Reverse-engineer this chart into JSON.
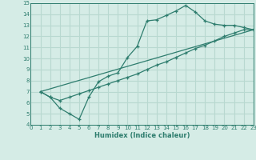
{
  "xlabel": "Humidex (Indice chaleur)",
  "xlim": [
    0,
    23
  ],
  "ylim": [
    4,
    15
  ],
  "xticks": [
    0,
    1,
    2,
    3,
    4,
    5,
    6,
    7,
    8,
    9,
    10,
    11,
    12,
    13,
    14,
    15,
    16,
    17,
    18,
    19,
    20,
    21,
    22,
    23
  ],
  "yticks": [
    4,
    5,
    6,
    7,
    8,
    9,
    10,
    11,
    12,
    13,
    14,
    15
  ],
  "color": "#2e7d6e",
  "bg_color": "#d5ece6",
  "grid_color": "#b8d8d0",
  "line1_x": [
    1,
    2,
    3,
    4,
    5,
    6,
    7,
    8,
    9,
    10,
    11,
    12,
    13,
    14,
    15,
    16,
    17,
    18,
    19,
    20,
    21,
    22,
    23
  ],
  "line1_y": [
    7.0,
    6.5,
    5.5,
    5.0,
    4.5,
    6.5,
    7.9,
    8.4,
    8.7,
    10.1,
    11.1,
    13.4,
    13.5,
    13.9,
    14.3,
    14.8,
    14.2,
    13.4,
    13.1,
    13.0,
    13.0,
    12.8,
    12.6
  ],
  "line2_x": [
    1,
    2,
    3,
    4,
    5,
    6,
    7,
    8,
    9,
    10,
    11,
    12,
    13,
    14,
    15,
    16,
    17,
    18,
    19,
    20,
    21,
    22,
    23
  ],
  "line2_y": [
    7.0,
    6.5,
    6.2,
    6.5,
    6.8,
    7.1,
    7.4,
    7.7,
    8.0,
    8.3,
    8.6,
    9.0,
    9.4,
    9.7,
    10.1,
    10.5,
    10.9,
    11.2,
    11.6,
    12.0,
    12.3,
    12.6,
    12.6
  ],
  "line3_x": [
    1,
    23
  ],
  "line3_y": [
    7.0,
    12.6
  ]
}
